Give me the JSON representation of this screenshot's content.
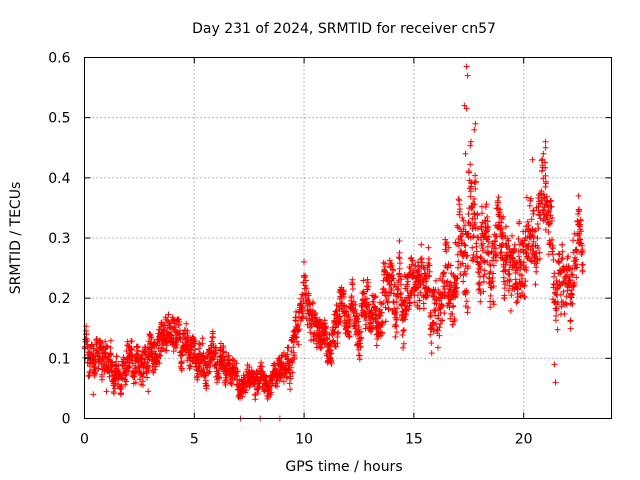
{
  "chart_data": {
    "type": "scatter",
    "title": "Day 231 of 2024, SRMTID for receiver cn57",
    "xlabel": "GPS time / hours",
    "ylabel": "SRMTID / TECUs",
    "xlim": [
      0,
      24
    ],
    "ylim": [
      0,
      0.6
    ],
    "xticks": [
      0,
      5,
      10,
      15,
      20
    ],
    "xtick_labels": [
      "0",
      "5",
      "10",
      "15",
      "20"
    ],
    "yticks": [
      0,
      0.1,
      0.2,
      0.3,
      0.4,
      0.5,
      0.6
    ],
    "ytick_labels": [
      "0",
      "0.1",
      "0.2",
      "0.3",
      "0.4",
      "0.5",
      "0.6"
    ],
    "grid": true,
    "marker": "plus",
    "color": "#ff0000",
    "series": [
      {
        "name": "SRMTID",
        "trend_x": [
          0,
          0.5,
          1,
          1.5,
          2,
          2.5,
          3,
          3.5,
          4,
          4.5,
          5,
          5.5,
          6,
          6.5,
          7,
          7.5,
          8,
          8.5,
          9,
          9.5,
          9.8,
          10,
          10.5,
          11,
          11.5,
          12,
          12.5,
          13,
          13.5,
          14,
          14.5,
          15,
          15.5,
          16,
          16.5,
          17,
          17.5,
          18,
          18.5,
          19,
          19.5,
          20,
          20.5,
          21,
          21.5,
          22,
          22.5,
          22.7
        ],
        "trend_y": [
          0.13,
          0.1,
          0.09,
          0.08,
          0.09,
          0.1,
          0.11,
          0.12,
          0.14,
          0.12,
          0.11,
          0.09,
          0.1,
          0.09,
          0.07,
          0.06,
          0.065,
          0.07,
          0.08,
          0.11,
          0.2,
          0.22,
          0.14,
          0.13,
          0.15,
          0.17,
          0.16,
          0.17,
          0.19,
          0.2,
          0.21,
          0.22,
          0.2,
          0.22,
          0.23,
          0.27,
          0.35,
          0.27,
          0.28,
          0.3,
          0.28,
          0.31,
          0.33,
          0.35,
          0.2,
          0.25,
          0.27,
          0.24
        ],
        "spread": [
          0.025,
          0.025,
          0.03,
          0.025,
          0.03,
          0.03,
          0.03,
          0.035,
          0.035,
          0.03,
          0.03,
          0.03,
          0.03,
          0.025,
          0.02,
          0.02,
          0.02,
          0.02,
          0.025,
          0.035,
          0.04,
          0.04,
          0.03,
          0.03,
          0.035,
          0.035,
          0.035,
          0.04,
          0.045,
          0.05,
          0.05,
          0.05,
          0.05,
          0.055,
          0.06,
          0.07,
          0.1,
          0.06,
          0.06,
          0.06,
          0.06,
          0.07,
          0.07,
          0.07,
          0.06,
          0.05,
          0.05,
          0.04
        ],
        "outliers": [
          [
            17.4,
            0.585
          ],
          [
            17.45,
            0.57
          ],
          [
            17.3,
            0.52
          ],
          [
            17.4,
            0.515
          ],
          [
            17.8,
            0.49
          ],
          [
            17.75,
            0.48
          ],
          [
            17.35,
            0.44
          ],
          [
            17.6,
            0.46
          ],
          [
            21.0,
            0.46
          ],
          [
            21.0,
            0.45
          ],
          [
            20.9,
            0.44
          ],
          [
            20.4,
            0.43
          ],
          [
            21.4,
            0.09
          ],
          [
            21.45,
            0.06
          ],
          [
            7.1,
            0.0
          ],
          [
            8.0,
            0.0
          ],
          [
            8.9,
            0.0
          ],
          [
            0.4,
            0.04
          ],
          [
            1.0,
            0.045
          ],
          [
            2.9,
            0.045
          ]
        ]
      }
    ]
  }
}
